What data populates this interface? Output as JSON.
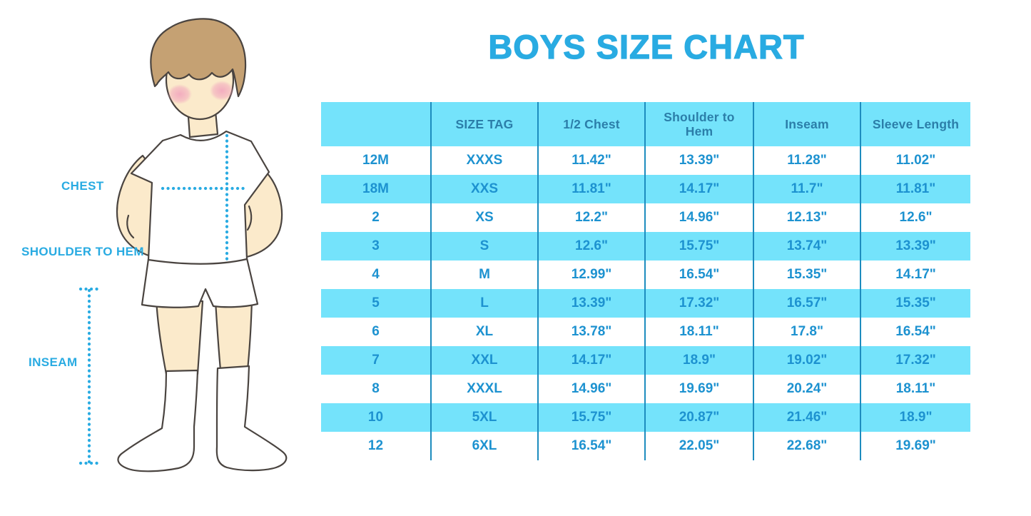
{
  "title": "BOYS SIZE CHART",
  "measurement_labels": {
    "chest": "CHEST",
    "shoulder_to_hem": "SHOULDER TO HEM",
    "inseam": "INSEAM"
  },
  "colors": {
    "accent": "#29ABE2",
    "table_fill": "#74E3FB",
    "table_line": "#1D8CBE",
    "header_text": "#2B7EA9",
    "cell_text": "#1D92D0",
    "skin": "#FBEACB",
    "hair": "#C5A173",
    "outline": "#4A4440",
    "blush": "#F2A9BE"
  },
  "chart_data": {
    "type": "table",
    "title": "BOYS SIZE CHART",
    "columns": [
      "",
      "SIZE TAG",
      "1/2 Chest",
      "Shoulder to Hem",
      "Inseam",
      "Sleeve Length"
    ],
    "rows": [
      [
        "12M",
        "XXXS",
        "11.42\"",
        "13.39\"",
        "11.28\"",
        "11.02\""
      ],
      [
        "18M",
        "XXS",
        "11.81\"",
        "14.17\"",
        "11.7\"",
        "11.81\""
      ],
      [
        "2",
        "XS",
        "12.2\"",
        "14.96\"",
        "12.13\"",
        "12.6\""
      ],
      [
        "3",
        "S",
        "12.6\"",
        "15.75\"",
        "13.74\"",
        "13.39\""
      ],
      [
        "4",
        "M",
        "12.99\"",
        "16.54\"",
        "15.35\"",
        "14.17\""
      ],
      [
        "5",
        "L",
        "13.39\"",
        "17.32\"",
        "16.57\"",
        "15.35\""
      ],
      [
        "6",
        "XL",
        "13.78\"",
        "18.11\"",
        "17.8\"",
        "16.54\""
      ],
      [
        "7",
        "XXL",
        "14.17\"",
        "18.9\"",
        "19.02\"",
        "17.32\""
      ],
      [
        "8",
        "XXXL",
        "14.96\"",
        "19.69\"",
        "20.24\"",
        "18.11\""
      ],
      [
        "10",
        "5XL",
        "15.75\"",
        "20.87\"",
        "21.46\"",
        "18.9\""
      ],
      [
        "12",
        "6XL",
        "16.54\"",
        "22.05\"",
        "22.68\"",
        "19.69\""
      ]
    ],
    "row_striping": "alternating white / light-cyan, first data row white",
    "units": "inches"
  }
}
